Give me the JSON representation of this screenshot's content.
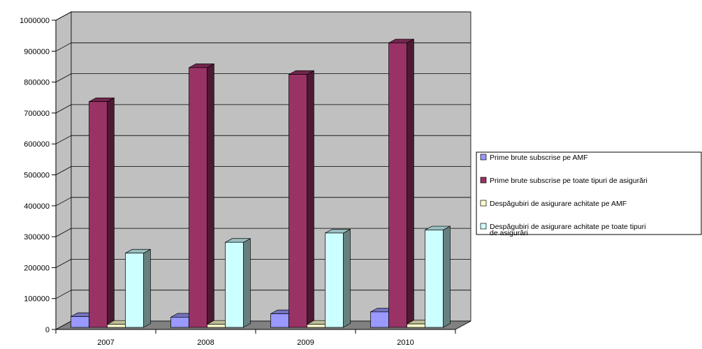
{
  "chart_data": {
    "type": "bar",
    "style": "3d-clustered-column",
    "categories": [
      "2007",
      "2008",
      "2009",
      "2010"
    ],
    "series": [
      {
        "name": "Prime brute subscrise pe AMF",
        "values": [
          35000,
          33000,
          44000,
          50000
        ],
        "color": "#9999ff"
      },
      {
        "name": "Prime brute subscrise pe toate tipuri de asigurări",
        "values": [
          730000,
          840000,
          818000,
          920000
        ],
        "color": "#993366"
      },
      {
        "name": "Despăgubiri de asigurare achitate pe AMF",
        "values": [
          10000,
          10000,
          10000,
          11000
        ],
        "color": "#ffffcc"
      },
      {
        "name": "Despăgubiri de asigurare achitate pe  toate tipuri de asigurări",
        "values": [
          240000,
          275000,
          305000,
          315000
        ],
        "color": "#ccffff"
      }
    ],
    "ylim": [
      0,
      1000000
    ],
    "yticks": [
      "0",
      "100000",
      "200000",
      "300000",
      "400000",
      "500000",
      "600000",
      "700000",
      "800000",
      "900000",
      "1000000"
    ],
    "grid": true,
    "legend_position": "right",
    "plot_background": "#c0c0c0",
    "floor_color": "#808080"
  }
}
